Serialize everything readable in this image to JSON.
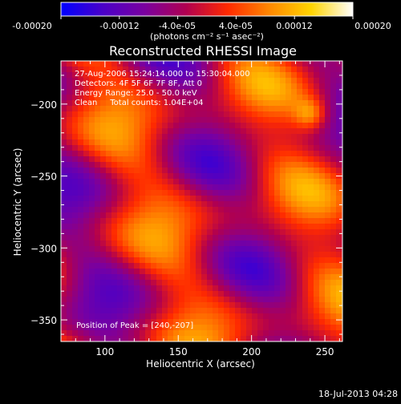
{
  "chart_data": {
    "type": "heatmap",
    "title": "Reconstructed RHESSI Image",
    "xlabel": "Heliocentric X (arcsec)",
    "ylabel": "Heliocentric Y (arcsec)",
    "xlim": [
      70,
      262
    ],
    "ylim": [
      -365,
      -170
    ],
    "xticks": [
      100,
      150,
      200,
      250
    ],
    "yticks": [
      -200,
      -250,
      -300,
      -350
    ],
    "colorbar": {
      "min": -0.0002,
      "max": 0.0002,
      "tick_labels": [
        "-0.00020",
        "-0.00012",
        "-4.0e-05",
        "4.0e-05",
        "0.00012",
        "0.00020"
      ],
      "unit_text": "(photons cm⁻² s⁻¹ asec⁻²)",
      "colormap": [
        "#0000ff",
        "#4a00c8",
        "#7a00a0",
        "#b00050",
        "#ff2a00",
        "#ff8800",
        "#ffd400",
        "#ffffff"
      ]
    },
    "annotations": [
      "27-Aug-2006 15:24:14.000 to 15:30:04.000",
      "Detectors: 4F 5F 6F 7F 8F, Att 0",
      "Energy Range: 25.0 - 50.0 keV",
      "Clean     Total counts: 1.04E+04"
    ],
    "peak_label": "Position of Peak = [240,-207]",
    "peak_position": [
      240,
      -207
    ]
  },
  "footer": {
    "timestamp": "18-Jul-2013 04:28"
  }
}
